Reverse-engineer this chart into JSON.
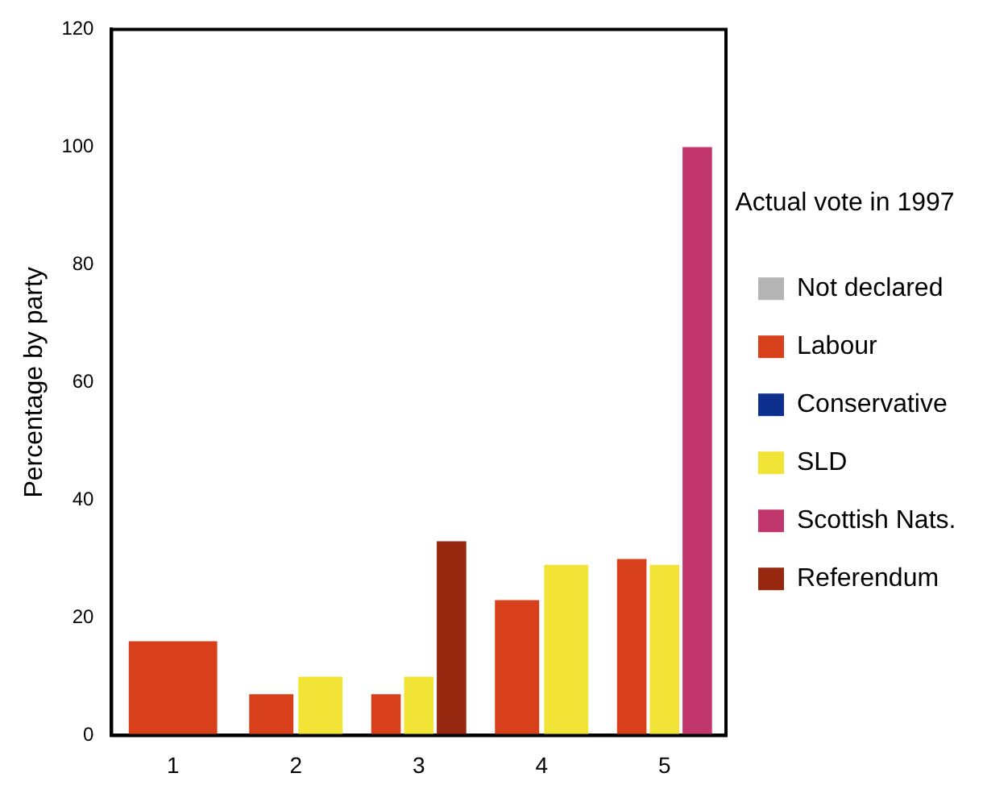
{
  "chart_data": {
    "type": "bar",
    "ylabel": "Percentage by party",
    "legend_title": "Actual vote in 1997",
    "categories": [
      "1",
      "2",
      "3",
      "4",
      "5"
    ],
    "series": [
      {
        "name": "Not declared",
        "color": "#b4b4b4",
        "values": [
          null,
          null,
          null,
          null,
          null
        ]
      },
      {
        "name": "Labour",
        "color": "#d8401c",
        "values": [
          16,
          7,
          7,
          23,
          30
        ]
      },
      {
        "name": "Conservative",
        "color": "#0d2f8e",
        "values": [
          null,
          null,
          null,
          null,
          null
        ]
      },
      {
        "name": "SLD",
        "color": "#f2e436",
        "values": [
          null,
          10,
          10,
          29,
          29
        ]
      },
      {
        "name": "Scottish Nats.",
        "color": "#c2366e",
        "values": [
          null,
          null,
          null,
          null,
          100
        ]
      },
      {
        "name": "Referendum",
        "color": "#96280f",
        "values": [
          null,
          null,
          33,
          null,
          null
        ]
      }
    ],
    "ylim": [
      0,
      120
    ],
    "yticks": [
      0,
      20,
      40,
      60,
      80,
      100,
      120
    ],
    "grid": false,
    "legend": "right"
  }
}
